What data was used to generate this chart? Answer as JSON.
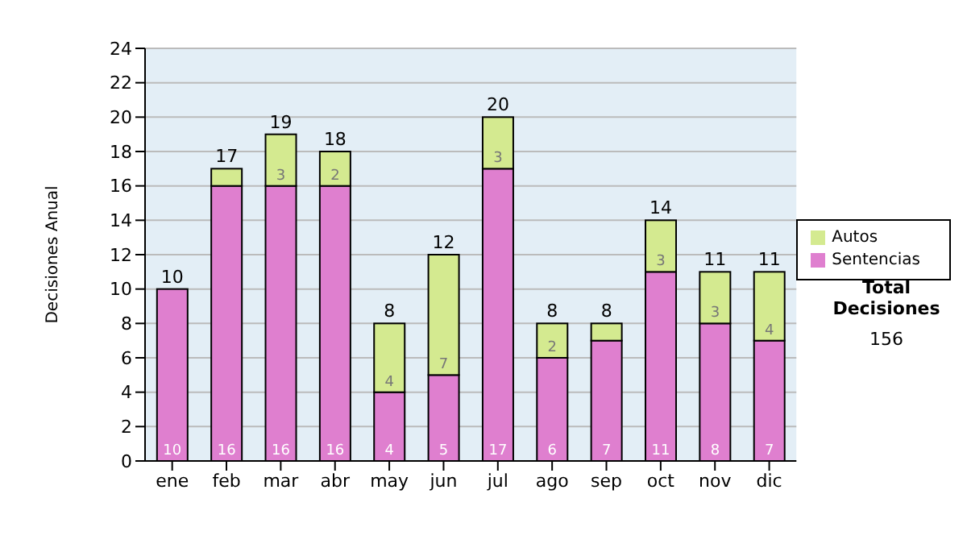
{
  "chart_data": {
    "type": "bar",
    "stacked": true,
    "ylabel": "Decisiones Anual",
    "categories": [
      "ene",
      "feb",
      "mar",
      "abr",
      "may",
      "jun",
      "jul",
      "ago",
      "sep",
      "oct",
      "nov",
      "dic"
    ],
    "series": [
      {
        "name": "Sentencias",
        "color": "#df7fcf",
        "values": [
          10,
          16,
          16,
          16,
          4,
          5,
          17,
          6,
          7,
          11,
          8,
          7
        ],
        "value_labels": [
          "10",
          "16",
          "16",
          "16",
          "4",
          "5",
          "17",
          "6",
          "7",
          "11",
          "8",
          "7"
        ]
      },
      {
        "name": "Autos",
        "color": "#d4ea90",
        "values": [
          0,
          1,
          3,
          2,
          4,
          7,
          3,
          2,
          1,
          3,
          3,
          4
        ],
        "value_labels": [
          null,
          null,
          "3",
          "2",
          "4",
          "7",
          "3",
          "2",
          null,
          "3",
          "3",
          "4"
        ]
      }
    ],
    "totals": [
      "10",
      "17",
      "19",
      "18",
      "8",
      "12",
      "20",
      "8",
      "8",
      "14",
      "11",
      "11"
    ],
    "ylim": [
      0,
      24
    ],
    "yticks": [
      0,
      2,
      4,
      6,
      8,
      10,
      12,
      14,
      16,
      18,
      20,
      22,
      24
    ],
    "grid": "y",
    "legend": "right",
    "annotations": [
      "Total Decisiones",
      "156"
    ]
  }
}
